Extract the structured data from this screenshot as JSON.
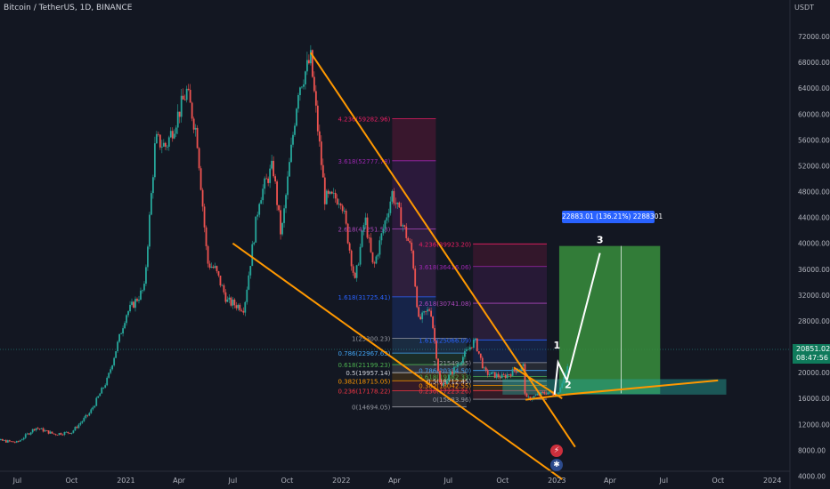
{
  "header": {
    "symbol": "Bitcoin / TetherUS, 1D, BINANCE",
    "currency": "USDT"
  },
  "price_tag": {
    "price": "20851.02",
    "countdown": "08:47:56"
  },
  "target_label": "22883.01 (136.21%) 2288301",
  "wave_labels": [
    "1",
    "2",
    "3"
  ],
  "fib_left": [
    {
      "label": "1(25300.23)",
      "color": "#9598a1"
    },
    {
      "label": "0.786(22967.63)",
      "color": "#42a5f5"
    },
    {
      "label": "0.618(21199.23)",
      "color": "#4caf50"
    },
    {
      "label": "0.5(19957.14)",
      "color": "#d1d4dc"
    },
    {
      "label": "0.382(18715.05)",
      "color": "#ff9800"
    },
    {
      "label": "0.236(17178.22)",
      "color": "#f23645"
    },
    {
      "label": "0(14694.05)",
      "color": "#9598a1"
    }
  ],
  "fib_ext_first": [
    {
      "label": "4.236(59282.96)",
      "color": "#e91e63"
    },
    {
      "label": "3.618(52777.78)",
      "color": "#9c27b0"
    },
    {
      "label": "2.618(42251.58)",
      "color": "#ab47bc"
    },
    {
      "label": "1.618(31725.41)",
      "color": "#2962ff"
    }
  ],
  "fib_ext_second": [
    {
      "label": "4.236(39923.20)",
      "color": "#e91e63"
    },
    {
      "label": "3.618(36416.06)",
      "color": "#9c27b0"
    },
    {
      "label": "2.618(30741.08)",
      "color": "#ab47bc"
    },
    {
      "label": "1.618(25066.09)",
      "color": "#2962ff"
    },
    {
      "label": "1(21549.95)",
      "color": "#9598a1"
    },
    {
      "label": "0.786(20334.50)",
      "color": "#42a5f5"
    },
    {
      "label": "0.618(19382.33)",
      "color": "#4caf50"
    },
    {
      "label": "0.5(18712.45)",
      "color": "#d1d4dc"
    },
    {
      "label": "0.382(18042.55)",
      "color": "#ff9800"
    },
    {
      "label": "0.236(17223.26)",
      "color": "#f23645"
    },
    {
      "label": "0(15883.96)",
      "color": "#9598a1"
    }
  ],
  "colors": {
    "background": "#131722",
    "grid": "#1e222d",
    "up": "#26a69a",
    "down": "#ef5350",
    "trendline": "#ff9800",
    "target_box": "#388e3c",
    "wave": "#ffffff"
  },
  "icons": [
    "lightning-icon",
    "us-flag-icon"
  ],
  "chart_data": {
    "type": "candlestick",
    "title": "Bitcoin / TetherUS, 1D, BINANCE",
    "y_unit": "USDT",
    "ylim": [
      2000,
      76000
    ],
    "y_ticks": [
      4000,
      8000,
      12000,
      16000,
      20000,
      24000,
      28000,
      32000,
      36000,
      40000,
      44000,
      48000,
      52000,
      56000,
      60000,
      64000,
      68000,
      72000
    ],
    "y_tick_labels": [
      "4000.00",
      "8000.00",
      "12000.00",
      "16000.00",
      "20000.00",
      "24000.00",
      "28000.00",
      "32000.00",
      "36000.00",
      "40000.00",
      "44000.00",
      "48000.00",
      "52000.00",
      "56000.00",
      "60000.00",
      "64000.00",
      "68000.00",
      "72000.00"
    ],
    "x_range": [
      "2020-05-01",
      "2024-03-01"
    ],
    "x_ticks": [
      {
        "date": "2020-07-01",
        "label": "Jul"
      },
      {
        "date": "2020-10-01",
        "label": "Oct"
      },
      {
        "date": "2021-01-01",
        "label": "2021"
      },
      {
        "date": "2021-04-01",
        "label": "Apr"
      },
      {
        "date": "2021-07-01",
        "label": "Jul"
      },
      {
        "date": "2021-10-01",
        "label": "Oct"
      },
      {
        "date": "2022-01-01",
        "label": "2022"
      },
      {
        "date": "2022-04-01",
        "label": "Apr"
      },
      {
        "date": "2022-07-01",
        "label": "Jul"
      },
      {
        "date": "2022-10-01",
        "label": "Oct"
      },
      {
        "date": "2023-01-01",
        "label": "2023"
      },
      {
        "date": "2023-04-01",
        "label": "Apr"
      },
      {
        "date": "2023-07-01",
        "label": "Jul"
      },
      {
        "date": "2023-10-01",
        "label": "Oct"
      },
      {
        "date": "2024-01-01",
        "label": "2024"
      }
    ],
    "grid": false,
    "price_path": [
      [
        "2020-05-01",
        8800
      ],
      [
        "2020-06-01",
        9500
      ],
      [
        "2020-07-01",
        9200
      ],
      [
        "2020-08-01",
        11500
      ],
      [
        "2020-09-01",
        10500
      ],
      [
        "2020-10-01",
        10800
      ],
      [
        "2020-11-01",
        13800
      ],
      [
        "2020-12-01",
        19000
      ],
      [
        "2021-01-01",
        29000
      ],
      [
        "2021-02-01",
        33000
      ],
      [
        "2021-02-20",
        56000
      ],
      [
        "2021-03-10",
        55000
      ],
      [
        "2021-04-14",
        63500
      ],
      [
        "2021-05-01",
        57000
      ],
      [
        "2021-05-19",
        37000
      ],
      [
        "2021-06-01",
        36000
      ],
      [
        "2021-06-22",
        31000
      ],
      [
        "2021-07-20",
        30000
      ],
      [
        "2021-08-15",
        47000
      ],
      [
        "2021-09-07",
        52000
      ],
      [
        "2021-09-21",
        41000
      ],
      [
        "2021-10-20",
        64000
      ],
      [
        "2021-11-10",
        68500
      ],
      [
        "2021-12-04",
        47000
      ],
      [
        "2022-01-01",
        47000
      ],
      [
        "2022-01-24",
        34000
      ],
      [
        "2022-02-10",
        44000
      ],
      [
        "2022-02-24",
        36000
      ],
      [
        "2022-03-28",
        47800
      ],
      [
        "2022-05-01",
        38500
      ],
      [
        "2022-05-12",
        28000
      ],
      [
        "2022-06-01",
        30000
      ],
      [
        "2022-06-18",
        17600
      ],
      [
        "2022-07-01",
        19300
      ],
      [
        "2022-08-15",
        25000
      ],
      [
        "2022-09-01",
        20000
      ],
      [
        "2022-10-01",
        19300
      ],
      [
        "2022-11-05",
        21000
      ],
      [
        "2022-11-09",
        15800
      ],
      [
        "2022-12-15",
        17000
      ],
      [
        "2023-01-01",
        16600
      ],
      [
        "2023-01-20",
        20851
      ]
    ],
    "trendlines": [
      {
        "from": [
          "2021-07-01",
          40000
        ],
        "to": [
          "2023-01-10",
          3500
        ]
      },
      {
        "from": [
          "2021-11-10",
          69500
        ],
        "to": [
          "2023-02-01",
          8500
        ]
      },
      {
        "from": [
          "2022-11-09",
          15800
        ],
        "to": [
          "2023-01-15",
          16600
        ]
      },
      {
        "from": [
          "2022-10-20",
          20800
        ],
        "to": [
          "2023-01-10",
          16000
        ]
      },
      {
        "from": [
          "2023-01-15",
          16600
        ],
        "to": [
          "2023-10-01",
          18800
        ]
      }
    ],
    "projection_waves": [
      [
        "2022-12-28",
        16600
      ],
      [
        "2023-01-03",
        21600
      ],
      [
        "2023-01-18",
        18800
      ],
      [
        "2023-03-15",
        38500
      ]
    ],
    "target_range": {
      "from": [
        "2023-01-05",
        16700
      ],
      "to": [
        "2023-06-25",
        39600
      ]
    },
    "fib_retracement": {
      "start": "2022-03-28",
      "end": "2022-08-01",
      "high": 25300.23,
      "low": 14694.05
    },
    "fib_extension_1": {
      "start": "2022-03-28",
      "end": "2022-06-10",
      "levels": [
        59282.96,
        52777.78,
        42251.58,
        31725.41
      ]
    },
    "fib_extension_2": {
      "start": "2022-08-12",
      "end": "2022-12-15",
      "levels": [
        39923.2,
        36416.06,
        30741.08,
        25066.09,
        21549.95,
        20334.5,
        19382.33,
        18712.45,
        18042.55,
        17223.26,
        15883.96
      ]
    }
  }
}
